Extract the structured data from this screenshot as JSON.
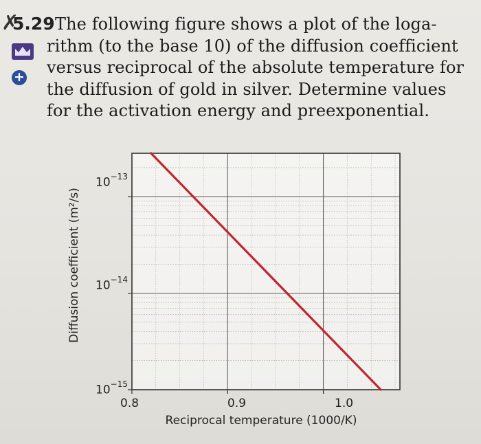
{
  "problem": {
    "number": "5.29",
    "lines": [
      "The following figure shows a plot of the loga-",
      "rithm (to the base 10) of the diffusion coefficient",
      "versus reciprocal of the absolute temperature for",
      "the diffusion of gold in silver. Determine values",
      "for the activation energy and preexponential."
    ]
  },
  "icons": {
    "crown": "crown-icon",
    "plus": "plus-icon",
    "check": "check-icon"
  },
  "chart_data": {
    "type": "line",
    "title": "",
    "xlabel": "Reciprocal temperature (1000/K)",
    "ylabel": "Diffusion coefficient (m²/s)",
    "x_ticks": [
      "0.8",
      "0.9",
      "1.0"
    ],
    "y_ticks": [
      {
        "base": "10",
        "exp": "−13"
      },
      {
        "base": "10",
        "exp": "−14"
      },
      {
        "base": "10",
        "exp": "−15"
      }
    ],
    "xlim": [
      0.8,
      1.08
    ],
    "ylim_log10": [
      -15,
      -12.55
    ],
    "y_scale": "log",
    "grid": true,
    "series": [
      {
        "x": [
          0.82,
          1.06
        ],
        "log10_y": [
          -12.55,
          -15.0
        ],
        "color": "#c0262b"
      }
    ]
  }
}
